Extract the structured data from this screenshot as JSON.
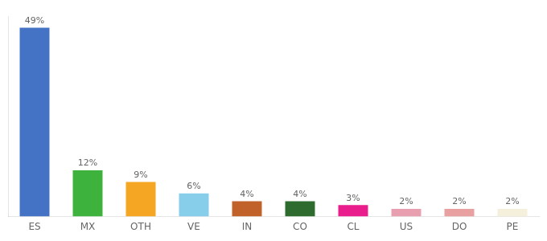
{
  "chart_data": {
    "type": "bar",
    "categories": [
      "ES",
      "MX",
      "OTH",
      "VE",
      "IN",
      "CO",
      "CL",
      "US",
      "DO",
      "PE"
    ],
    "values": [
      49,
      12,
      9,
      6,
      4,
      4,
      3,
      2,
      2,
      2
    ],
    "value_labels": [
      "49%",
      "12%",
      "9%",
      "6%",
      "4%",
      "4%",
      "3%",
      "2%",
      "2%",
      "2%"
    ],
    "colors": [
      "#4472c4",
      "#3db33d",
      "#f5a623",
      "#87ceeb",
      "#c0622a",
      "#2e6b2e",
      "#e91e8c",
      "#e8a0b0",
      "#e8a0a0",
      "#f5f0dc"
    ],
    "ylim": [
      0,
      52
    ],
    "grid": false,
    "data_labels": true,
    "tick_labels": "x"
  }
}
